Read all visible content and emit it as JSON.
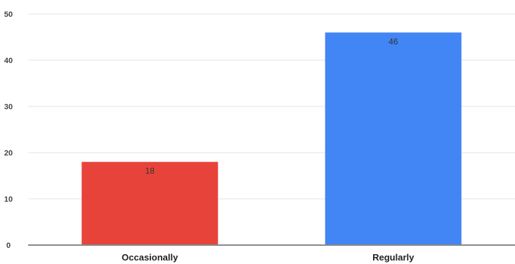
{
  "chart_data": {
    "type": "bar",
    "categories": [
      "Occasionally",
      "Regularly"
    ],
    "values": [
      18,
      46
    ],
    "data_labels": [
      "18",
      "46"
    ],
    "colors": [
      "#e8433a",
      "#4285f4"
    ],
    "ylim": [
      0,
      50
    ],
    "yticks": [
      0,
      10,
      20,
      30,
      40,
      50
    ],
    "grid": true,
    "title": "",
    "xlabel": "",
    "ylabel": ""
  }
}
